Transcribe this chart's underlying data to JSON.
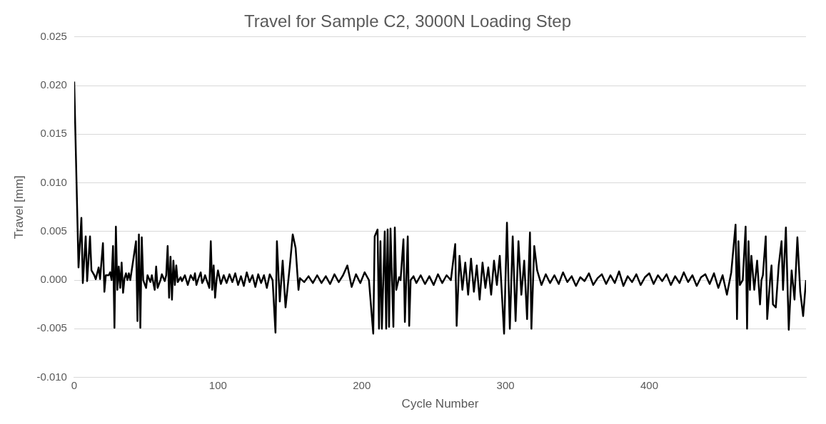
{
  "chart_data": {
    "type": "line",
    "title": "Travel for Sample C2, 3000N Loading Step",
    "xlabel": "Cycle Number",
    "ylabel": "Travel [mm]",
    "xlim": [
      0,
      509
    ],
    "xticks": [
      0,
      100,
      200,
      300,
      400
    ],
    "ylim": [
      -0.01,
      0.025
    ],
    "yticks": [
      {
        "value": -0.01,
        "label": "-0.010"
      },
      {
        "value": -0.005,
        "label": "-0.005"
      },
      {
        "value": 0,
        "label": "0.000"
      },
      {
        "value": 0.005,
        "label": "0.005"
      },
      {
        "value": 0.01,
        "label": "0.010"
      },
      {
        "value": 0.015,
        "label": "0.015"
      },
      {
        "value": 0.02,
        "label": "0.020"
      },
      {
        "value": 0.025,
        "label": "0.025"
      }
    ],
    "grid": "y",
    "legend": false,
    "marker": "none",
    "line_style": "solid",
    "series": [
      {
        "color": "#000000",
        "x": [
          0,
          3,
          5,
          6,
          8,
          9,
          11,
          12,
          14,
          15,
          17,
          18,
          20,
          21,
          22,
          24,
          25,
          26,
          27,
          28,
          29,
          30,
          31,
          32,
          33,
          34,
          35,
          36,
          37,
          38,
          39,
          43,
          44,
          45,
          46,
          47,
          48,
          50,
          51,
          53,
          54,
          56,
          57,
          58,
          60,
          61,
          63,
          64,
          65,
          66,
          67,
          68,
          69,
          70,
          71,
          72,
          74,
          75,
          77,
          79,
          81,
          83,
          84,
          85,
          86,
          88,
          89,
          90,
          91,
          94,
          95,
          96,
          97,
          98,
          99,
          100,
          102,
          104,
          106,
          108,
          110,
          112,
          114,
          116,
          118,
          120,
          122,
          124,
          126,
          128,
          130,
          132,
          134,
          136,
          138,
          140,
          141,
          143,
          145,
          147,
          150,
          152,
          154,
          156,
          157,
          160,
          163,
          166,
          169,
          172,
          175,
          178,
          181,
          184,
          187,
          190,
          193,
          196,
          199,
          202,
          205,
          208,
          209,
          211,
          212,
          213,
          214,
          216,
          217,
          218,
          219,
          220,
          222,
          223,
          224,
          226,
          227,
          229,
          230,
          232,
          233,
          234,
          236,
          238,
          241,
          244,
          247,
          250,
          253,
          256,
          259,
          262,
          265,
          266,
          268,
          270,
          272,
          274,
          276,
          278,
          280,
          282,
          284,
          286,
          288,
          290,
          292,
          294,
          296,
          299,
          301,
          303,
          305,
          307,
          309,
          311,
          313,
          315,
          317,
          318,
          320,
          322,
          325,
          328,
          331,
          334,
          337,
          340,
          343,
          346,
          349,
          352,
          355,
          358,
          361,
          364,
          367,
          370,
          373,
          376,
          379,
          382,
          385,
          388,
          391,
          394,
          397,
          400,
          403,
          406,
          409,
          412,
          415,
          418,
          421,
          424,
          427,
          430,
          433,
          436,
          439,
          442,
          445,
          448,
          451,
          454,
          457,
          460,
          461,
          462,
          463,
          465,
          467,
          468,
          469,
          470,
          471,
          473,
          475,
          477,
          478,
          479,
          481,
          482,
          484,
          485,
          486,
          488,
          490,
          492,
          493,
          495,
          497,
          499,
          501,
          503,
          505,
          507,
          509
        ],
        "values": [
          0.0204,
          0.0013,
          0.0064,
          -0.0003,
          0.0045,
          -0.0001,
          0.0045,
          0.001,
          0.0005,
          0.0001,
          0.0013,
          0.0001,
          0.0038,
          -0.0012,
          0.0005,
          0.0005,
          0.0008,
          0.0,
          0.0035,
          -0.0049,
          0.0055,
          -0.001,
          0.0014,
          -0.0008,
          0.0018,
          -0.0013,
          0.0002,
          0.0007,
          0.0,
          0.0007,
          0.0,
          0.004,
          -0.0042,
          0.0047,
          -0.0049,
          0.0044,
          0.0,
          -0.0008,
          0.0005,
          -0.0002,
          0.0005,
          -0.001,
          0.0014,
          -0.0008,
          0.0,
          0.0006,
          -0.0001,
          0.0005,
          0.0035,
          -0.0018,
          0.0024,
          -0.002,
          0.002,
          -0.0005,
          0.0015,
          -0.0002,
          0.0003,
          -0.0001,
          0.0005,
          -0.0005,
          0.0005,
          0.0,
          0.0007,
          -0.0005,
          0.0,
          0.0008,
          -0.0003,
          0.0,
          0.0005,
          -0.0008,
          0.004,
          -0.001,
          0.0015,
          -0.0018,
          0.0,
          0.001,
          -0.0004,
          0.0005,
          -0.0003,
          0.0006,
          -0.0002,
          0.0007,
          -0.0005,
          0.0004,
          -0.0006,
          0.0008,
          -0.0002,
          0.0005,
          -0.0007,
          0.0006,
          -0.0003,
          0.0005,
          -0.0008,
          0.0006,
          0.0,
          -0.0054,
          0.004,
          -0.0022,
          0.002,
          -0.0028,
          0.0015,
          0.0047,
          0.0033,
          -0.001,
          0.0002,
          -0.0002,
          0.0004,
          -0.0003,
          0.0005,
          -0.0003,
          0.0004,
          -0.0004,
          0.0006,
          -0.0002,
          0.0005,
          0.0015,
          -0.0007,
          0.0006,
          -0.0003,
          0.0008,
          0.0,
          -0.0055,
          0.0045,
          0.0052,
          -0.005,
          0.004,
          -0.005,
          0.005,
          -0.005,
          0.0052,
          -0.0048,
          0.0053,
          -0.0048,
          0.0054,
          -0.001,
          0.0003,
          0.0,
          0.0042,
          -0.0043,
          0.0045,
          -0.0047,
          0.0,
          0.0004,
          -0.0003,
          0.0005,
          -0.0004,
          0.0004,
          -0.0005,
          0.0006,
          -0.0003,
          0.0005,
          0.0,
          0.0037,
          -0.0047,
          0.0025,
          -0.001,
          0.0018,
          -0.0015,
          0.0022,
          -0.0012,
          0.0015,
          -0.002,
          0.0018,
          -0.0008,
          0.0013,
          -0.0015,
          0.002,
          -0.0005,
          0.0025,
          -0.0055,
          0.0059,
          -0.005,
          0.0045,
          -0.0042,
          0.004,
          -0.0015,
          0.002,
          -0.004,
          0.0049,
          -0.005,
          0.0035,
          0.001,
          -0.0005,
          0.0006,
          -0.0003,
          0.0005,
          -0.0004,
          0.0008,
          -0.0002,
          0.0004,
          -0.0006,
          0.0003,
          -0.0001,
          0.0007,
          -0.0005,
          0.0002,
          0.0006,
          -0.0004,
          0.0005,
          -0.0003,
          0.0009,
          -0.0006,
          0.0004,
          -0.0002,
          0.0006,
          -0.0005,
          0.0003,
          0.0007,
          -0.0004,
          0.0005,
          -0.0001,
          0.0006,
          -0.0005,
          0.0004,
          -0.0003,
          0.0008,
          -0.0002,
          0.0005,
          -0.0006,
          0.0003,
          0.0006,
          -0.0004,
          0.0007,
          -0.0008,
          0.0005,
          -0.0015,
          0.0008,
          0.0057,
          -0.004,
          0.004,
          -0.0005,
          0.0,
          0.0055,
          -0.005,
          0.004,
          -0.001,
          0.0025,
          -0.001,
          0.002,
          -0.0025,
          0.0,
          0.0005,
          0.0045,
          -0.004,
          0.0,
          0.0015,
          -0.0025,
          -0.0028,
          0.0015,
          0.004,
          -0.001,
          0.0054,
          -0.0051,
          0.001,
          -0.002,
          0.0044,
          -0.0012,
          -0.0037,
          0.0
        ]
      }
    ]
  }
}
